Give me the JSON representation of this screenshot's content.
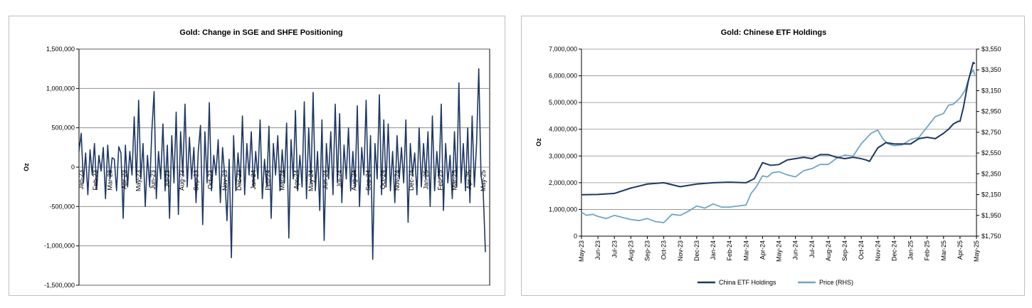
{
  "chart_data": [
    {
      "type": "line",
      "title": "Gold: Change in SGE and SHFE Positioning",
      "ylabel": "Oz",
      "xlabel": "",
      "ylim": [
        -1500000,
        1500000
      ],
      "grid": true,
      "legend": "none",
      "y_ticks": [
        {
          "value": 1500000,
          "label": "1,500,000",
          "color": "#000000"
        },
        {
          "value": 1000000,
          "label": "1,000,000",
          "color": "#000000"
        },
        {
          "value": 500000,
          "label": "500,000",
          "color": "#000000"
        },
        {
          "value": 0,
          "label": "0",
          "color": "#000000"
        },
        {
          "value": -500000,
          "label": "-500,000",
          "color": "#ff0000"
        },
        {
          "value": -1000000,
          "label": "-1,000,000",
          "color": "#ff0000"
        },
        {
          "value": -1500000,
          "label": "-1,500,000",
          "color": "#ff0000"
        }
      ],
      "x_tick_labels": [
        "Jan-23",
        "Feb-23",
        "Mar-23",
        "Apr-23",
        "May-23",
        "Jun-23",
        "Jul-23",
        "Aug-23",
        "Sep-23",
        "Oct-23",
        "Nov-23",
        "Dec-23",
        "Jan-24",
        "Feb-24",
        "Mar-24",
        "Apr-24",
        "May-24",
        "Jun-24",
        "Jul-24",
        "Aug-24",
        "Sep-24",
        "Oct-24",
        "Nov-24",
        "Dec-24",
        "Jan-25",
        "Feb-25",
        "Mar-25",
        "Apr-25",
        "May-25"
      ],
      "series": [
        {
          "color": "#1f3864",
          "values": [
            200000,
            430000,
            -200000,
            180000,
            -350000,
            220000,
            -100000,
            300000,
            -280000,
            150000,
            -50000,
            250000,
            -400000,
            280000,
            -150000,
            120000,
            100000,
            -300000,
            260000,
            180000,
            -650000,
            280000,
            -250000,
            200000,
            -100000,
            640000,
            -200000,
            850000,
            -150000,
            300000,
            -500000,
            150000,
            -250000,
            470000,
            960000,
            -400000,
            200000,
            -150000,
            550000,
            -300000,
            280000,
            -650000,
            400000,
            -200000,
            700000,
            -600000,
            450000,
            -100000,
            800000,
            -250000,
            380000,
            -150000,
            250000,
            -450000,
            200000,
            530000,
            -730000,
            450000,
            -200000,
            820000,
            -300000,
            150000,
            -100000,
            350000,
            -450000,
            250000,
            -120000,
            -680000,
            100000,
            -1150000,
            400000,
            -300000,
            180000,
            -200000,
            650000,
            -350000,
            300000,
            -100000,
            450000,
            -250000,
            200000,
            -150000,
            600000,
            -400000,
            100000,
            -250000,
            520000,
            -650000,
            300000,
            -100000,
            400000,
            -300000,
            220000,
            -200000,
            560000,
            -900000,
            350000,
            -150000,
            720000,
            -300000,
            150000,
            -250000,
            830000,
            -400000,
            500000,
            -200000,
            950000,
            -300000,
            200000,
            -550000,
            600000,
            -930000,
            300000,
            -150000,
            450000,
            -350000,
            800000,
            -200000,
            680000,
            -450000,
            280000,
            -150000,
            500000,
            -300000,
            200000,
            -250000,
            780000,
            -500000,
            250000,
            -100000,
            850000,
            -350000,
            400000,
            -1170000,
            300000,
            -150000,
            920000,
            -350000,
            600000,
            -250000,
            550000,
            -300000,
            200000,
            -450000,
            400000,
            -150000,
            250000,
            -200000,
            600000,
            -700000,
            300000,
            -100000,
            180000,
            -350000,
            500000,
            -250000,
            300000,
            -150000,
            450000,
            -500000,
            650000,
            -300000,
            200000,
            -150000,
            800000,
            -550000,
            300000,
            -200000,
            150000,
            -400000,
            450000,
            -250000,
            1070000,
            -200000,
            300000,
            -300000,
            500000,
            -450000,
            650000,
            -250000,
            300000,
            1250000,
            -100000,
            -300000,
            -1080000
          ]
        }
      ],
      "highlight": {
        "from_index": 192,
        "color": "#ff0000"
      }
    },
    {
      "type": "line",
      "title": "Gold: Chinese ETF Holdings",
      "ylabel": "Oz",
      "xlabel": "",
      "ylim": [
        0,
        7000000
      ],
      "y2lim": [
        1750,
        3550
      ],
      "grid": true,
      "legend": "bottom",
      "y_tick_labels": [
        "0",
        "1,000,000",
        "2,000,000",
        "3,000,000",
        "4,000,000",
        "5,000,000",
        "6,000,000",
        "7,000,000"
      ],
      "y2_tick_labels": [
        "$1,750",
        "$1,950",
        "$2,150",
        "$2,350",
        "$2,550",
        "$2,750",
        "$2,950",
        "$3,150",
        "$3,350",
        "$3,550"
      ],
      "x_tick_labels": [
        "May-23",
        "Jun-23",
        "Jul-23",
        "Aug-23",
        "Sep-23",
        "Oct-23",
        "Nov-23",
        "Dec-23",
        "Jan-24",
        "Feb-24",
        "Mar-24",
        "Apr-24",
        "May-24",
        "Jun-24",
        "Jul-24",
        "Aug-24",
        "Sep-24",
        "Oct-24",
        "Nov-24",
        "Dec-24",
        "Jan-25",
        "Feb-25",
        "Mar-25",
        "Apr-25",
        "May-25"
      ],
      "series": [
        {
          "name": "China ETF Holdings",
          "axis": "left",
          "color": "#1f3864",
          "x": [
            0,
            1,
            2,
            3,
            4,
            5,
            6,
            7,
            8,
            9,
            10,
            10.5,
            11,
            11.5,
            12,
            12.5,
            13,
            13.5,
            14,
            14.5,
            15,
            15.5,
            16,
            16.5,
            17,
            17.3,
            17.5,
            18,
            18.5,
            19,
            19.5,
            20,
            20.5,
            21,
            21.5,
            22,
            22.3,
            22.6,
            22.9,
            23,
            23.2,
            23.5,
            23.8,
            23.9
          ],
          "values": [
            1550000,
            1560000,
            1600000,
            1800000,
            1950000,
            2000000,
            1850000,
            1950000,
            2000000,
            2020000,
            2000000,
            2150000,
            2750000,
            2650000,
            2680000,
            2850000,
            2900000,
            2950000,
            2900000,
            3050000,
            3050000,
            2950000,
            2900000,
            2950000,
            2900000,
            2850000,
            2800000,
            3300000,
            3500000,
            3450000,
            3450000,
            3450000,
            3650000,
            3700000,
            3650000,
            3850000,
            4000000,
            4200000,
            4300000,
            4300000,
            4800000,
            5800000,
            6500000,
            6450000
          ]
        },
        {
          "name": "Price (RHS)",
          "axis": "right",
          "color": "#6ea6c8",
          "x": [
            0,
            0.3,
            0.7,
            1,
            1.5,
            2,
            2.5,
            3,
            3.5,
            4,
            4.5,
            5,
            5.5,
            6,
            6.5,
            7,
            7.5,
            8,
            8.5,
            9,
            9.5,
            10,
            10.3,
            10.6,
            11,
            11.3,
            11.6,
            12,
            12.5,
            13,
            13.5,
            14,
            14.5,
            15,
            15.5,
            16,
            16.5,
            17,
            17.3,
            17.6,
            18,
            18.3,
            18.6,
            19,
            19.5,
            20,
            20.5,
            21,
            21.5,
            22,
            22.3,
            22.6,
            23,
            23.3,
            23.6,
            23.8,
            23.9
          ],
          "values": [
            1980,
            1950,
            1960,
            1940,
            1920,
            1950,
            1930,
            1910,
            1900,
            1920,
            1890,
            1880,
            1960,
            1950,
            1990,
            2040,
            2020,
            2060,
            2030,
            2030,
            2040,
            2050,
            2160,
            2220,
            2330,
            2320,
            2360,
            2370,
            2340,
            2320,
            2380,
            2400,
            2440,
            2440,
            2500,
            2530,
            2520,
            2640,
            2690,
            2740,
            2770,
            2690,
            2640,
            2620,
            2630,
            2680,
            2700,
            2800,
            2900,
            2930,
            3010,
            3020,
            3080,
            3150,
            3300,
            3350,
            3300
          ]
        }
      ]
    }
  ]
}
